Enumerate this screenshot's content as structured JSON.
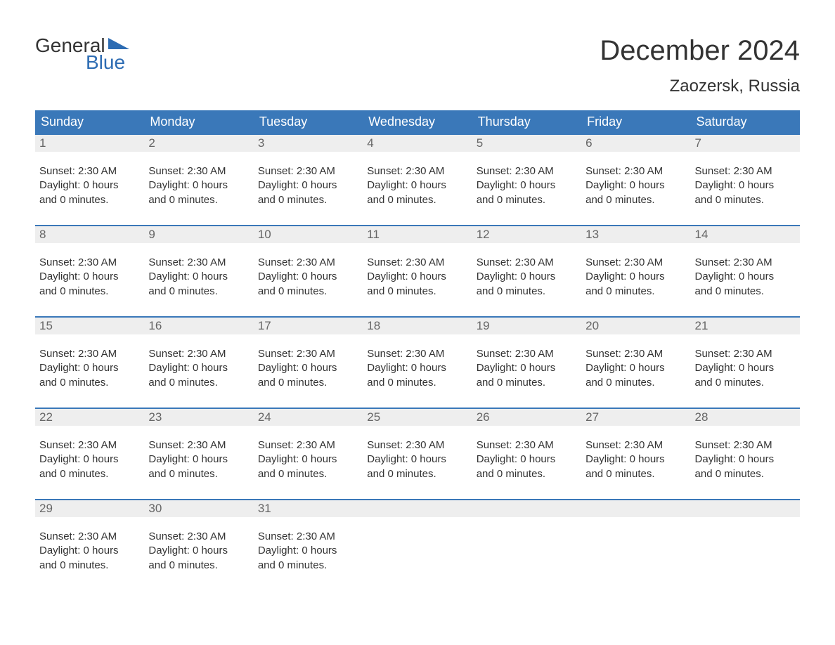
{
  "logo": {
    "text1": "General",
    "text2": "Blue",
    "text1_color": "#333333",
    "text2_color": "#2d6cb3",
    "shape_color": "#2d6cb3"
  },
  "header": {
    "title": "December 2024",
    "location": "Zaozersk, Russia"
  },
  "colors": {
    "header_bg": "#3a78b9",
    "header_text": "#ffffff",
    "daynum_bg": "#eeeeee",
    "daynum_text": "#666666",
    "border": "#3a78b9",
    "body_text": "#333333",
    "background": "#ffffff"
  },
  "typography": {
    "title_fontsize": 40,
    "location_fontsize": 24,
    "weekday_fontsize": 18,
    "daynum_fontsize": 17,
    "content_fontsize": 15,
    "logo_fontsize": 28
  },
  "weekdays": [
    "Sunday",
    "Monday",
    "Tuesday",
    "Wednesday",
    "Thursday",
    "Friday",
    "Saturday"
  ],
  "weeks": [
    {
      "days": [
        {
          "num": "1",
          "sunset": "Sunset: 2:30 AM",
          "daylight1": "Daylight: 0 hours",
          "daylight2": "and 0 minutes."
        },
        {
          "num": "2",
          "sunset": "Sunset: 2:30 AM",
          "daylight1": "Daylight: 0 hours",
          "daylight2": "and 0 minutes."
        },
        {
          "num": "3",
          "sunset": "Sunset: 2:30 AM",
          "daylight1": "Daylight: 0 hours",
          "daylight2": "and 0 minutes."
        },
        {
          "num": "4",
          "sunset": "Sunset: 2:30 AM",
          "daylight1": "Daylight: 0 hours",
          "daylight2": "and 0 minutes."
        },
        {
          "num": "5",
          "sunset": "Sunset: 2:30 AM",
          "daylight1": "Daylight: 0 hours",
          "daylight2": "and 0 minutes."
        },
        {
          "num": "6",
          "sunset": "Sunset: 2:30 AM",
          "daylight1": "Daylight: 0 hours",
          "daylight2": "and 0 minutes."
        },
        {
          "num": "7",
          "sunset": "Sunset: 2:30 AM",
          "daylight1": "Daylight: 0 hours",
          "daylight2": "and 0 minutes."
        }
      ]
    },
    {
      "days": [
        {
          "num": "8",
          "sunset": "Sunset: 2:30 AM",
          "daylight1": "Daylight: 0 hours",
          "daylight2": "and 0 minutes."
        },
        {
          "num": "9",
          "sunset": "Sunset: 2:30 AM",
          "daylight1": "Daylight: 0 hours",
          "daylight2": "and 0 minutes."
        },
        {
          "num": "10",
          "sunset": "Sunset: 2:30 AM",
          "daylight1": "Daylight: 0 hours",
          "daylight2": "and 0 minutes."
        },
        {
          "num": "11",
          "sunset": "Sunset: 2:30 AM",
          "daylight1": "Daylight: 0 hours",
          "daylight2": "and 0 minutes."
        },
        {
          "num": "12",
          "sunset": "Sunset: 2:30 AM",
          "daylight1": "Daylight: 0 hours",
          "daylight2": "and 0 minutes."
        },
        {
          "num": "13",
          "sunset": "Sunset: 2:30 AM",
          "daylight1": "Daylight: 0 hours",
          "daylight2": "and 0 minutes."
        },
        {
          "num": "14",
          "sunset": "Sunset: 2:30 AM",
          "daylight1": "Daylight: 0 hours",
          "daylight2": "and 0 minutes."
        }
      ]
    },
    {
      "days": [
        {
          "num": "15",
          "sunset": "Sunset: 2:30 AM",
          "daylight1": "Daylight: 0 hours",
          "daylight2": "and 0 minutes."
        },
        {
          "num": "16",
          "sunset": "Sunset: 2:30 AM",
          "daylight1": "Daylight: 0 hours",
          "daylight2": "and 0 minutes."
        },
        {
          "num": "17",
          "sunset": "Sunset: 2:30 AM",
          "daylight1": "Daylight: 0 hours",
          "daylight2": "and 0 minutes."
        },
        {
          "num": "18",
          "sunset": "Sunset: 2:30 AM",
          "daylight1": "Daylight: 0 hours",
          "daylight2": "and 0 minutes."
        },
        {
          "num": "19",
          "sunset": "Sunset: 2:30 AM",
          "daylight1": "Daylight: 0 hours",
          "daylight2": "and 0 minutes."
        },
        {
          "num": "20",
          "sunset": "Sunset: 2:30 AM",
          "daylight1": "Daylight: 0 hours",
          "daylight2": "and 0 minutes."
        },
        {
          "num": "21",
          "sunset": "Sunset: 2:30 AM",
          "daylight1": "Daylight: 0 hours",
          "daylight2": "and 0 minutes."
        }
      ]
    },
    {
      "days": [
        {
          "num": "22",
          "sunset": "Sunset: 2:30 AM",
          "daylight1": "Daylight: 0 hours",
          "daylight2": "and 0 minutes."
        },
        {
          "num": "23",
          "sunset": "Sunset: 2:30 AM",
          "daylight1": "Daylight: 0 hours",
          "daylight2": "and 0 minutes."
        },
        {
          "num": "24",
          "sunset": "Sunset: 2:30 AM",
          "daylight1": "Daylight: 0 hours",
          "daylight2": "and 0 minutes."
        },
        {
          "num": "25",
          "sunset": "Sunset: 2:30 AM",
          "daylight1": "Daylight: 0 hours",
          "daylight2": "and 0 minutes."
        },
        {
          "num": "26",
          "sunset": "Sunset: 2:30 AM",
          "daylight1": "Daylight: 0 hours",
          "daylight2": "and 0 minutes."
        },
        {
          "num": "27",
          "sunset": "Sunset: 2:30 AM",
          "daylight1": "Daylight: 0 hours",
          "daylight2": "and 0 minutes."
        },
        {
          "num": "28",
          "sunset": "Sunset: 2:30 AM",
          "daylight1": "Daylight: 0 hours",
          "daylight2": "and 0 minutes."
        }
      ]
    },
    {
      "days": [
        {
          "num": "29",
          "sunset": "Sunset: 2:30 AM",
          "daylight1": "Daylight: 0 hours",
          "daylight2": "and 0 minutes."
        },
        {
          "num": "30",
          "sunset": "Sunset: 2:30 AM",
          "daylight1": "Daylight: 0 hours",
          "daylight2": "and 0 minutes."
        },
        {
          "num": "31",
          "sunset": "Sunset: 2:30 AM",
          "daylight1": "Daylight: 0 hours",
          "daylight2": "and 0 minutes."
        },
        {
          "num": "",
          "sunset": "",
          "daylight1": "",
          "daylight2": ""
        },
        {
          "num": "",
          "sunset": "",
          "daylight1": "",
          "daylight2": ""
        },
        {
          "num": "",
          "sunset": "",
          "daylight1": "",
          "daylight2": ""
        },
        {
          "num": "",
          "sunset": "",
          "daylight1": "",
          "daylight2": ""
        }
      ]
    }
  ]
}
